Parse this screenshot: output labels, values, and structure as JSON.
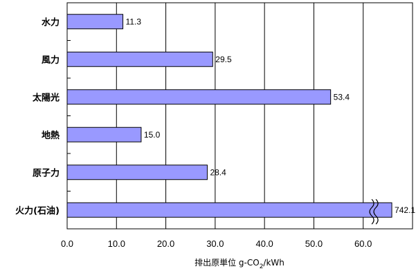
{
  "chart_data": {
    "type": "bar",
    "orientation": "horizontal",
    "categories": [
      "水力",
      "風力",
      "太陽光",
      "地熱",
      "原子力",
      "火力(石油)"
    ],
    "values": [
      11.3,
      29.5,
      53.4,
      15.0,
      28.4,
      742.1
    ],
    "value_labels": [
      "11.3",
      "29.5",
      "53.4",
      "15.0",
      "28.4",
      "742.1"
    ],
    "broken": [
      false,
      false,
      false,
      false,
      false,
      true
    ],
    "xlim": [
      0,
      70
    ],
    "xticks": [
      0,
      10,
      20,
      30,
      40,
      50,
      60
    ],
    "xtick_labels": [
      "0.0",
      "10.0",
      "20.0",
      "30.0",
      "40.0",
      "50.0",
      "60.0"
    ],
    "xlabel": {
      "prefix": "排出原単位 g-CO",
      "subscript": "2",
      "suffix": "/kWh"
    },
    "title": "",
    "grid": true,
    "legend": "none",
    "colors": {
      "bar_fill": "#9999ff",
      "bar_stroke": "#000000",
      "grid": "#000000"
    }
  }
}
